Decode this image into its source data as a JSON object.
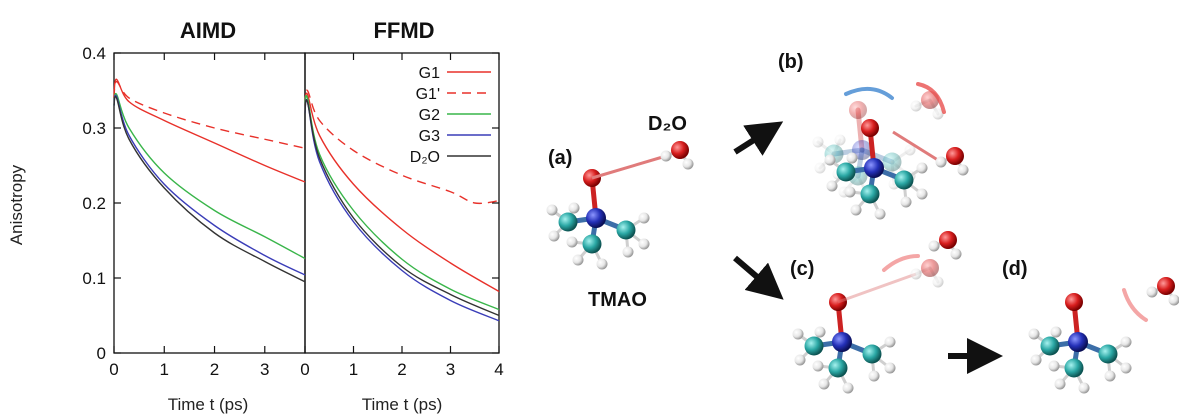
{
  "chart_data": [
    {
      "type": "line",
      "title": "AIMD",
      "xlabel": "Time t (ps)",
      "ylabel": "Anisotropy",
      "xlim": [
        0,
        3.8
      ],
      "ylim": [
        0,
        0.4
      ],
      "x_ticks": [
        "0",
        "1",
        "2",
        "3"
      ],
      "y_ticks": [
        "0",
        "0.1",
        "0.2",
        "0.3",
        "0.4"
      ],
      "series": [
        {
          "name": "G1",
          "color": "#e8312a",
          "dash": false,
          "points": [
            [
              0,
              0.34
            ],
            [
              0.05,
              0.365
            ],
            [
              0.3,
              0.335
            ],
            [
              1,
              0.31
            ],
            [
              2,
              0.28
            ],
            [
              3,
              0.25
            ],
            [
              3.8,
              0.228
            ]
          ]
        },
        {
          "name": "G1'",
          "color": "#e8312a",
          "dash": true,
          "points": [
            [
              0,
              0.34
            ],
            [
              0.05,
              0.362
            ],
            [
              0.3,
              0.34
            ],
            [
              1,
              0.32
            ],
            [
              2,
              0.3
            ],
            [
              3,
              0.285
            ],
            [
              3.8,
              0.273
            ]
          ]
        },
        {
          "name": "G2",
          "color": "#39b54a",
          "dash": false,
          "points": [
            [
              0,
              0.33
            ],
            [
              0.05,
              0.345
            ],
            [
              0.3,
              0.3
            ],
            [
              1,
              0.24
            ],
            [
              2,
              0.19
            ],
            [
              3,
              0.155
            ],
            [
              3.8,
              0.126
            ]
          ]
        },
        {
          "name": "G3",
          "color": "#3a3db8",
          "dash": false,
          "points": [
            [
              0,
              0.33
            ],
            [
              0.05,
              0.342
            ],
            [
              0.3,
              0.29
            ],
            [
              1,
              0.225
            ],
            [
              2,
              0.17
            ],
            [
              3,
              0.13
            ],
            [
              3.8,
              0.104
            ]
          ]
        },
        {
          "name": "D₂O",
          "color": "#333333",
          "dash": false,
          "points": [
            [
              0,
              0.33
            ],
            [
              0.05,
              0.34
            ],
            [
              0.3,
              0.285
            ],
            [
              1,
              0.22
            ],
            [
              2,
              0.16
            ],
            [
              3,
              0.122
            ],
            [
              3.8,
              0.095
            ]
          ]
        }
      ]
    },
    {
      "type": "line",
      "title": "FFMD",
      "xlabel": "Time t (ps)",
      "ylabel": "",
      "xlim": [
        0,
        4
      ],
      "ylim": [
        0,
        0.4
      ],
      "x_ticks": [
        "0",
        "1",
        "2",
        "3",
        "4"
      ],
      "legend": "top-right",
      "series": [
        {
          "name": "G1",
          "color": "#e8312a",
          "dash": false,
          "points": [
            [
              0,
              0.33
            ],
            [
              0.05,
              0.345
            ],
            [
              0.3,
              0.29
            ],
            [
              1,
              0.225
            ],
            [
              2,
              0.165
            ],
            [
              3,
              0.12
            ],
            [
              4,
              0.082
            ]
          ]
        },
        {
          "name": "G1'",
          "color": "#e8312a",
          "dash": true,
          "points": [
            [
              0,
              0.33
            ],
            [
              0.05,
              0.35
            ],
            [
              0.3,
              0.31
            ],
            [
              1,
              0.27
            ],
            [
              2,
              0.237
            ],
            [
              3,
              0.215
            ],
            [
              3.5,
              0.2
            ],
            [
              4,
              0.203
            ]
          ]
        },
        {
          "name": "G2",
          "color": "#39b54a",
          "dash": false,
          "points": [
            [
              0,
              0.33
            ],
            [
              0.05,
              0.34
            ],
            [
              0.3,
              0.265
            ],
            [
              1,
              0.19
            ],
            [
              2,
              0.125
            ],
            [
              3,
              0.085
            ],
            [
              4,
              0.058
            ]
          ]
        },
        {
          "name": "G3",
          "color": "#3a3db8",
          "dash": false,
          "points": [
            [
              0,
              0.32
            ],
            [
              0.05,
              0.335
            ],
            [
              0.3,
              0.255
            ],
            [
              1,
              0.175
            ],
            [
              2,
              0.11
            ],
            [
              3,
              0.07
            ],
            [
              4,
              0.043
            ]
          ]
        },
        {
          "name": "D₂O",
          "color": "#333333",
          "dash": false,
          "points": [
            [
              0,
              0.32
            ],
            [
              0.05,
              0.335
            ],
            [
              0.3,
              0.26
            ],
            [
              1,
              0.18
            ],
            [
              2,
              0.115
            ],
            [
              3,
              0.078
            ],
            [
              4,
              0.05
            ]
          ]
        }
      ]
    }
  ],
  "diagram": {
    "panel_labels": [
      "(a)",
      "(b)",
      "(c)",
      "(d)"
    ],
    "molecule_label": "TMAO",
    "water_label": "D₂O"
  }
}
